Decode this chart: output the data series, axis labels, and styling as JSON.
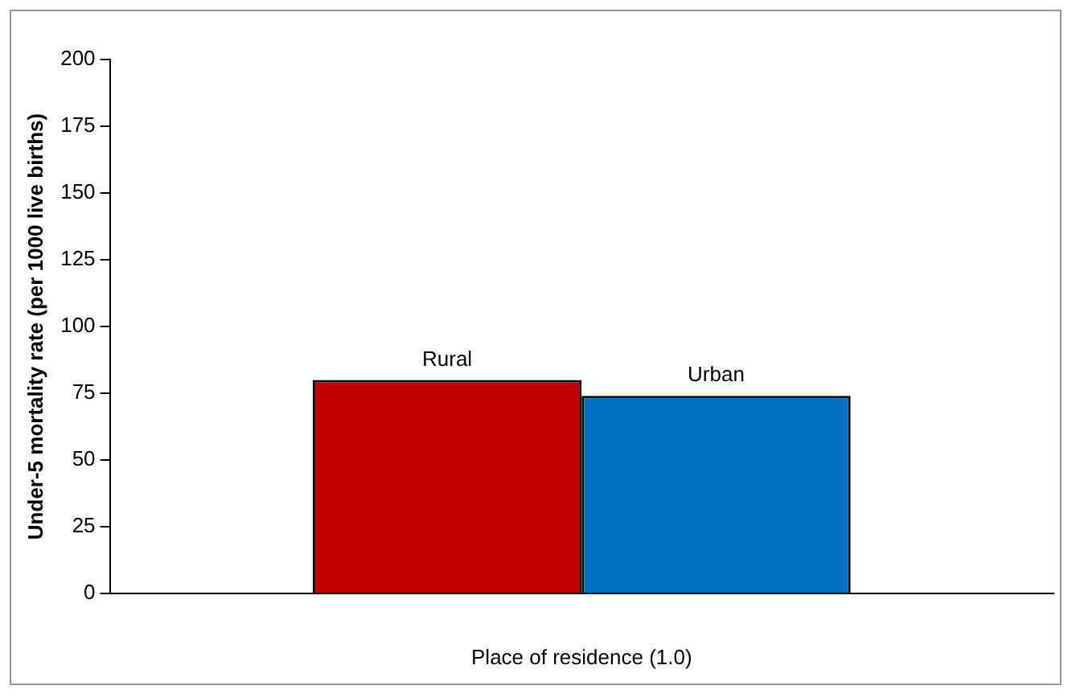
{
  "chart_data": {
    "type": "bar",
    "xlabel": "Place of residence (1.0)",
    "ylabel": "Under-5 mortality rate (per 1000 live births)",
    "categories": [
      null
    ],
    "series": [
      {
        "name": "Rural",
        "color": "#c00000",
        "values": [
          80
        ]
      },
      {
        "name": "Urban",
        "color": "#0070c0",
        "values": [
          74
        ]
      }
    ],
    "ylim": [
      0,
      200
    ],
    "yticks": [
      0,
      25,
      50,
      75,
      100,
      125,
      150,
      175,
      200
    ],
    "grid": false,
    "legend": false
  }
}
